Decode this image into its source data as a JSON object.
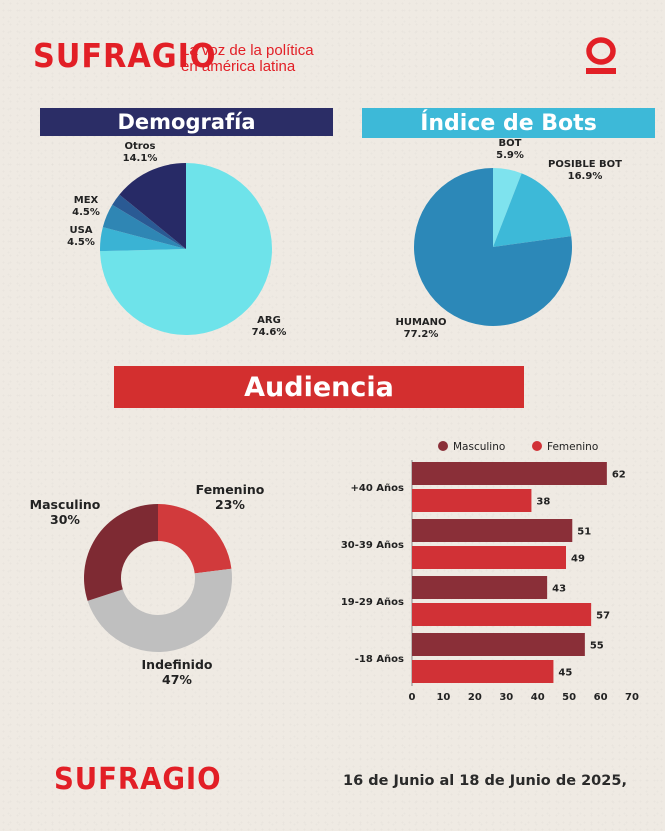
{
  "header": {
    "brand": "SUFRAGIO",
    "tagline_line1": "La voz de la política",
    "tagline_line2": "en américa latina"
  },
  "colors": {
    "brand_red": "#e21f26",
    "navy": "#2b2d66",
    "sky": "#3db9d8",
    "banner_red": "#d32f2f"
  },
  "sections": {
    "demografia": "Demografía",
    "bots": "Índice de Bots",
    "audiencia": "Audiencia"
  },
  "footer": {
    "brand": "SUFRAGIO",
    "date": "16 de Junio al 18 de Junio de 2025,"
  },
  "chart_data": [
    {
      "type": "pie",
      "title": "Demografía",
      "slices": [
        {
          "name": "ARG",
          "value": 74.6,
          "label": "74.6%",
          "color": "#6ee3ea"
        },
        {
          "name": "USA",
          "value": 4.5,
          "label": "4.5%",
          "color": "#3ab3d4"
        },
        {
          "name": "MEX",
          "value": 4.5,
          "label": "4.5%",
          "color": "#2f86b4"
        },
        {
          "name": "",
          "value": 2.3,
          "label": "",
          "color": "#2a5a94"
        },
        {
          "name": "Otros",
          "value": 14.1,
          "label": "14.1%",
          "color": "#272a66"
        }
      ]
    },
    {
      "type": "pie",
      "title": "Índice de Bots",
      "slices": [
        {
          "name": "BOT",
          "value": 5.9,
          "label": "5.9%",
          "color": "#7ee3ee"
        },
        {
          "name": "POSIBLE BOT",
          "value": 16.9,
          "label": "16.9%",
          "color": "#3db9d8"
        },
        {
          "name": "HUMANO",
          "value": 77.2,
          "label": "77.2%",
          "color": "#2c88b8"
        }
      ]
    },
    {
      "type": "pie",
      "title": "Audiencia",
      "slices": [
        {
          "name": "Femenino",
          "value": 23,
          "label": "23%",
          "color": "#d13a3c"
        },
        {
          "name": "Indefinido",
          "value": 47,
          "label": "47%",
          "color": "#bfbfbf"
        },
        {
          "name": "Masculino",
          "value": 30,
          "label": "30%",
          "color": "#7e2a33"
        }
      ]
    },
    {
      "type": "bar",
      "orientation": "horizontal",
      "categories": [
        "+40 Años",
        "30-39 Años",
        "19-29 Años",
        "-18 Años"
      ],
      "series": [
        {
          "name": "Masculino",
          "values": [
            62,
            51,
            43,
            55
          ],
          "color": "#8a2f38"
        },
        {
          "name": "Femenino",
          "values": [
            38,
            49,
            57,
            45
          ],
          "color": "#d13136"
        }
      ],
      "xlim": [
        0,
        70
      ],
      "xticks": [
        "0",
        "10",
        "20",
        "30",
        "40",
        "50",
        "60",
        "70"
      ],
      "legend": "top"
    }
  ]
}
